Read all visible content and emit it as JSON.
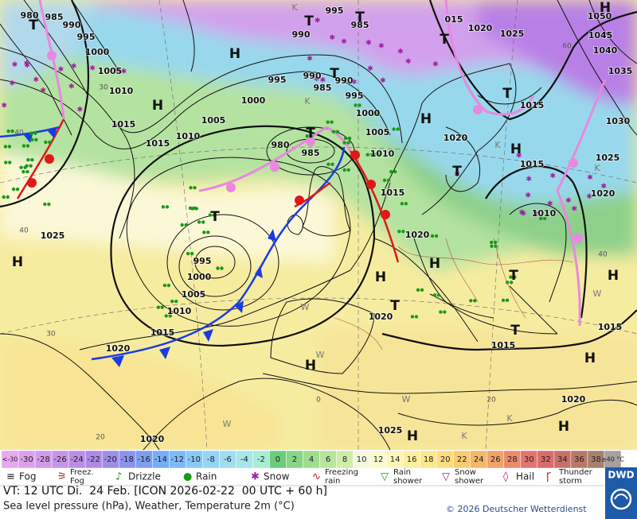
{
  "map": {
    "isobar_labels": [
      "980",
      "985",
      "990",
      "995",
      "1000",
      "1005",
      "1010",
      "1015",
      "1015",
      "1010",
      "1005",
      "1000",
      "995",
      "990",
      "985",
      "990",
      "995",
      "1000",
      "1005",
      "1010",
      "1015",
      "1020",
      "980",
      "985",
      "995",
      "1000",
      "1005",
      "1010",
      "1015",
      "1020",
      "1025",
      "1020",
      "1015",
      "1020",
      "1025",
      "1020",
      "995",
      "985",
      "990",
      "015",
      "1020",
      "1025",
      "1050",
      "1045",
      "1040",
      "1035",
      "1030",
      "1025",
      "1020",
      "1015",
      "1015",
      "1020",
      "1010",
      "1015"
    ],
    "pressure_centers": [
      "H",
      "T",
      "H",
      "T",
      "H",
      "T",
      "T",
      "T",
      "H",
      "T",
      "H",
      "T",
      "H",
      "H",
      "H",
      "T",
      "T",
      "T",
      "H",
      "H",
      "H",
      "H",
      "H",
      "T",
      "T"
    ],
    "temperature_labels": [
      "40",
      "30",
      "20",
      "40",
      "20",
      "60",
      "40",
      "30",
      "0"
    ],
    "air_mass_labels": [
      "K",
      "K",
      "K",
      "K",
      "W",
      "W",
      "W",
      "K",
      "W",
      "K",
      "W"
    ]
  },
  "legend": {
    "temperature_scale": {
      "labels": [
        "<-30",
        -30,
        -28,
        -26,
        -24,
        -22,
        -20,
        -18,
        -16,
        -14,
        -12,
        -10,
        -8,
        -6,
        -4,
        -2,
        0,
        2,
        4,
        6,
        8,
        10,
        12,
        14,
        16,
        18,
        20,
        22,
        24,
        26,
        28,
        30,
        32,
        34,
        36,
        38,
        "≥40 °C"
      ],
      "colors": [
        "#e6a8ee",
        "#dda0ea",
        "#d29ae8",
        "#c794e6",
        "#bb8ee4",
        "#ae8ae4",
        "#9f8de8",
        "#8c93ec",
        "#7d9df0",
        "#78acf4",
        "#7fbaf6",
        "#8ac8f6",
        "#95d4f4",
        "#a0def0",
        "#a8e6e6",
        "#a8ecd6",
        "#6ccc7c",
        "#88d488",
        "#a0dc90",
        "#b8e49c",
        "#d0eca8",
        "#f4f8e0",
        "#fafad0",
        "#fcf6b8",
        "#fcf0a0",
        "#fce88c",
        "#fcdc80",
        "#f8cc70",
        "#f4b868",
        "#f0a268",
        "#ec8a6c",
        "#e47470",
        "#d86c6c",
        "#c87068",
        "#b87868",
        "#a88070",
        "#a8a0a0"
      ]
    },
    "weather_symbols": [
      {
        "label": [
          "Fog"
        ]
      },
      {
        "label": [
          "Freez.",
          "Fog"
        ]
      },
      {
        "label": [
          "Drizzle"
        ]
      },
      {
        "label": [
          "Rain"
        ]
      },
      {
        "label": [
          "Snow"
        ]
      },
      {
        "label": [
          "Freezing",
          "rain"
        ]
      },
      {
        "label": [
          "Rain",
          "shower"
        ]
      },
      {
        "label": [
          "Snow",
          "shower"
        ]
      },
      {
        "label": [
          "Hail"
        ]
      },
      {
        "label": [
          "Thunder",
          "storm"
        ]
      }
    ]
  },
  "footer": {
    "valid_time": "VT: 12 UTC Di.  24 Feb. [ICON 2026-02-22  00 UTC + 60 h]",
    "description": "Sea level pressure (hPa), Weather, Temperature 2m (°C)",
    "copyright": "© 2026 Deutscher Wetterdienst",
    "logo": "DWD"
  }
}
